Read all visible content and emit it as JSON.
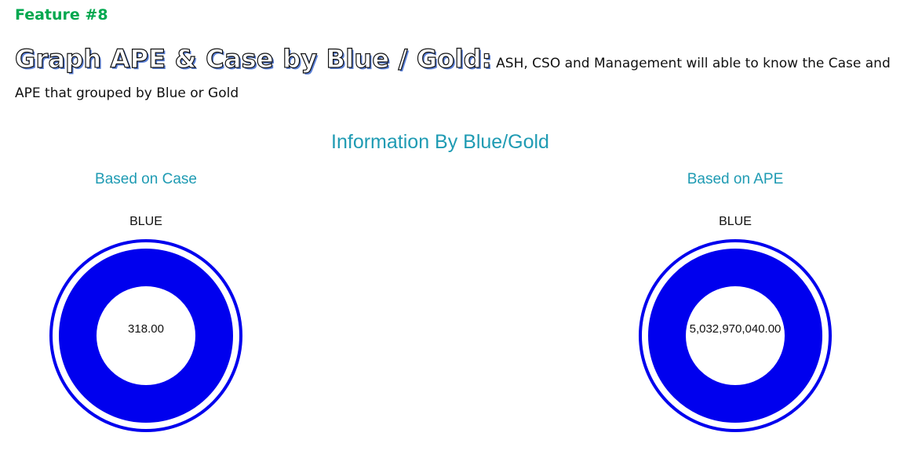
{
  "feature_tag": "Feature #8",
  "headline": "Graph APE & Case by Blue / Gold:",
  "description": "ASH, CSO and Management will able to know the Case and APE that grouped by Blue or Gold",
  "chart_title": "Information By Blue/Gold",
  "colors": {
    "feature_tag": "#00a84f",
    "chart_title": "#1f9bb3",
    "blue_series": "#0000ee"
  },
  "chart_data": [
    {
      "type": "pie",
      "title": "Based on Case",
      "categories": [
        "BLUE"
      ],
      "values": [
        318.0
      ],
      "value_label": "318.00",
      "style": "donut"
    },
    {
      "type": "pie",
      "title": "Based on APE",
      "categories": [
        "BLUE"
      ],
      "values": [
        5032970040.0
      ],
      "value_label": "5,032,970,040.00",
      "style": "donut"
    }
  ]
}
